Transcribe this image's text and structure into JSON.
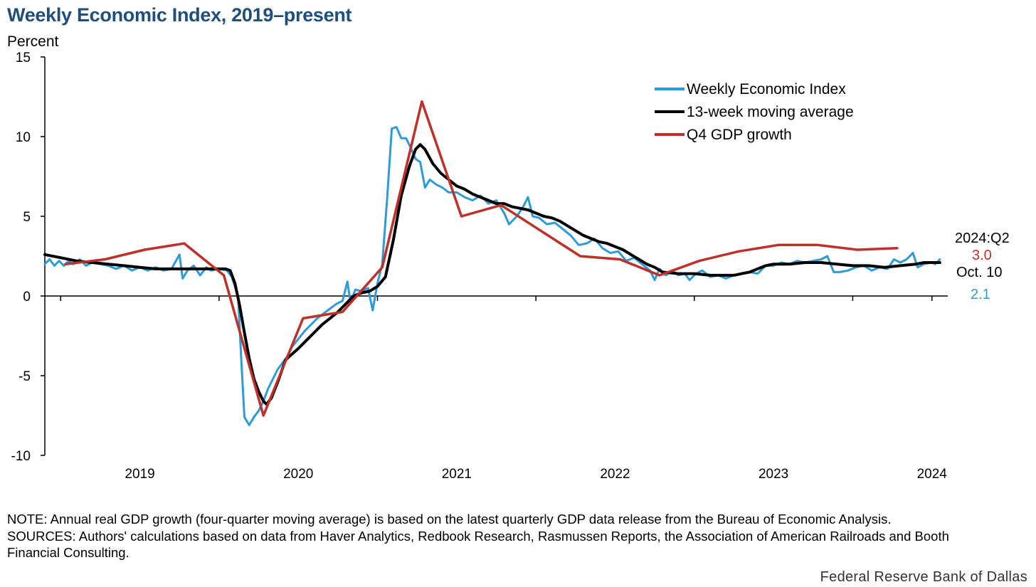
{
  "title": "Weekly Economic Index, 2019–present",
  "y_unit_label": "Percent",
  "notes": {
    "note": "NOTE: Annual real GDP growth (four-quarter moving average) is based on the latest quarterly GDP data release from the Bureau of Economic Analysis.",
    "sources": "SOURCES: Authors' calculations based on data from Haver Analytics, Redbook Research, Rasmussen Reports, the Association of American Railroads and Booth Financial Consulting."
  },
  "brand": "Federal Reserve Bank of Dallas",
  "annotations": {
    "gdp_period": "2024:Q2",
    "gdp_value": "3.0",
    "wei_date": "Oct. 10",
    "wei_value": "2.1"
  },
  "chart_data": {
    "type": "line",
    "title": "Weekly Economic Index, 2019–present",
    "ylabel": "Percent",
    "xlabel": "",
    "xlim": [
      2018.4,
      2024.1
    ],
    "ylim": [
      -10,
      15
    ],
    "y_ticks": [
      15,
      10,
      5,
      0,
      -5,
      -10
    ],
    "x_ticks": [
      2019,
      2020,
      2021,
      2022,
      2023,
      2024
    ],
    "x_tick_labels": [
      "2019",
      "2020",
      "2021",
      "2022",
      "2023",
      "2024"
    ],
    "legend_position": "top-right",
    "colors": {
      "wei": "#2e9bd6",
      "ma": "#000000",
      "gdp": "#c0302b",
      "axis": "#000000"
    },
    "series": [
      {
        "name": "Weekly Economic Index",
        "key": "wei",
        "points": [
          [
            2018.4,
            2.0
          ],
          [
            2018.43,
            2.3
          ],
          [
            2018.46,
            1.9
          ],
          [
            2018.49,
            2.2
          ],
          [
            2018.52,
            1.9
          ],
          [
            2018.55,
            2.2
          ],
          [
            2018.58,
            2.0
          ],
          [
            2018.62,
            2.3
          ],
          [
            2018.66,
            1.9
          ],
          [
            2018.7,
            2.1
          ],
          [
            2018.75,
            2.0
          ],
          [
            2018.8,
            1.9
          ],
          [
            2018.85,
            1.7
          ],
          [
            2018.9,
            1.9
          ],
          [
            2018.95,
            1.6
          ],
          [
            2019.0,
            1.8
          ],
          [
            2019.05,
            1.6
          ],
          [
            2019.1,
            1.8
          ],
          [
            2019.15,
            1.6
          ],
          [
            2019.2,
            1.7
          ],
          [
            2019.25,
            2.6
          ],
          [
            2019.27,
            1.1
          ],
          [
            2019.3,
            1.6
          ],
          [
            2019.34,
            1.9
          ],
          [
            2019.38,
            1.3
          ],
          [
            2019.42,
            1.8
          ],
          [
            2019.45,
            1.6
          ],
          [
            2019.5,
            1.7
          ],
          [
            2019.55,
            1.6
          ],
          [
            2019.58,
            1.2
          ],
          [
            2019.62,
            0.0
          ],
          [
            2019.64,
            -4.0
          ],
          [
            2019.66,
            -7.6
          ],
          [
            2019.69,
            -8.1
          ],
          [
            2019.72,
            -7.6
          ],
          [
            2019.75,
            -7.2
          ],
          [
            2019.78,
            -6.6
          ],
          [
            2019.81,
            -5.8
          ],
          [
            2019.84,
            -5.2
          ],
          [
            2019.87,
            -4.6
          ],
          [
            2019.9,
            -4.2
          ],
          [
            2019.93,
            -3.8
          ],
          [
            2019.96,
            -3.2
          ],
          [
            2020.0,
            -2.7
          ],
          [
            2020.04,
            -2.2
          ],
          [
            2020.08,
            -1.8
          ],
          [
            2020.12,
            -1.4
          ],
          [
            2020.16,
            -1.1
          ],
          [
            2020.2,
            -0.8
          ],
          [
            2020.24,
            -0.5
          ],
          [
            2020.28,
            -0.3
          ],
          [
            2020.31,
            0.9
          ],
          [
            2020.33,
            -0.4
          ],
          [
            2020.36,
            0.4
          ],
          [
            2020.4,
            0.3
          ],
          [
            2020.44,
            0.5
          ],
          [
            2020.47,
            -0.9
          ],
          [
            2020.5,
            0.8
          ],
          [
            2020.53,
            2.0
          ],
          [
            2020.56,
            6.0
          ],
          [
            2020.59,
            10.5
          ],
          [
            2020.62,
            10.6
          ],
          [
            2020.65,
            9.9
          ],
          [
            2020.68,
            9.9
          ],
          [
            2020.71,
            9.3
          ],
          [
            2020.74,
            8.6
          ],
          [
            2020.77,
            8.4
          ],
          [
            2020.8,
            6.8
          ],
          [
            2020.83,
            7.3
          ],
          [
            2020.87,
            7.0
          ],
          [
            2020.91,
            6.8
          ],
          [
            2020.95,
            6.5
          ],
          [
            2021.0,
            6.5
          ],
          [
            2021.05,
            6.2
          ],
          [
            2021.1,
            6.0
          ],
          [
            2021.15,
            6.3
          ],
          [
            2021.2,
            5.8
          ],
          [
            2021.25,
            6.0
          ],
          [
            2021.3,
            5.2
          ],
          [
            2021.33,
            4.5
          ],
          [
            2021.38,
            5.0
          ],
          [
            2021.42,
            5.6
          ],
          [
            2021.45,
            6.2
          ],
          [
            2021.48,
            5.0
          ],
          [
            2021.52,
            4.9
          ],
          [
            2021.57,
            4.5
          ],
          [
            2021.62,
            4.6
          ],
          [
            2021.67,
            4.2
          ],
          [
            2021.72,
            3.8
          ],
          [
            2021.77,
            3.2
          ],
          [
            2021.82,
            3.3
          ],
          [
            2021.87,
            3.6
          ],
          [
            2021.92,
            3.0
          ],
          [
            2021.97,
            2.7
          ],
          [
            2022.02,
            2.8
          ],
          [
            2022.07,
            2.2
          ],
          [
            2022.12,
            2.4
          ],
          [
            2022.17,
            2.0
          ],
          [
            2022.22,
            1.6
          ],
          [
            2022.25,
            1.0
          ],
          [
            2022.28,
            1.7
          ],
          [
            2022.32,
            1.3
          ],
          [
            2022.36,
            1.6
          ],
          [
            2022.4,
            1.3
          ],
          [
            2022.44,
            1.4
          ],
          [
            2022.47,
            1.0
          ],
          [
            2022.51,
            1.4
          ],
          [
            2022.55,
            1.6
          ],
          [
            2022.6,
            1.2
          ],
          [
            2022.65,
            1.3
          ],
          [
            2022.7,
            1.1
          ],
          [
            2022.75,
            1.3
          ],
          [
            2022.8,
            1.4
          ],
          [
            2022.85,
            1.5
          ],
          [
            2022.9,
            1.4
          ],
          [
            2022.95,
            1.9
          ],
          [
            2023.0,
            1.9
          ],
          [
            2023.05,
            2.1
          ],
          [
            2023.1,
            2.0
          ],
          [
            2023.15,
            2.2
          ],
          [
            2023.2,
            2.1
          ],
          [
            2023.25,
            2.2
          ],
          [
            2023.3,
            2.3
          ],
          [
            2023.34,
            2.5
          ],
          [
            2023.38,
            1.5
          ],
          [
            2023.42,
            1.5
          ],
          [
            2023.47,
            1.6
          ],
          [
            2023.52,
            1.8
          ],
          [
            2023.57,
            1.9
          ],
          [
            2023.62,
            1.6
          ],
          [
            2023.67,
            1.8
          ],
          [
            2023.72,
            1.7
          ],
          [
            2023.76,
            2.3
          ],
          [
            2023.8,
            2.1
          ],
          [
            2023.84,
            2.3
          ],
          [
            2023.88,
            2.7
          ],
          [
            2023.91,
            1.8
          ],
          [
            2023.95,
            2.0
          ],
          [
            2024.0,
            2.1
          ],
          [
            2024.02,
            2.0
          ],
          [
            2024.05,
            2.3
          ]
        ]
      },
      {
        "name": "13-week moving average",
        "key": "ma",
        "points": [
          [
            2018.4,
            2.6
          ],
          [
            2018.5,
            2.4
          ],
          [
            2018.6,
            2.2
          ],
          [
            2018.7,
            2.1
          ],
          [
            2018.8,
            2.0
          ],
          [
            2018.9,
            1.9
          ],
          [
            2019.0,
            1.8
          ],
          [
            2019.1,
            1.7
          ],
          [
            2019.2,
            1.7
          ],
          [
            2019.3,
            1.7
          ],
          [
            2019.4,
            1.7
          ],
          [
            2019.5,
            1.7
          ],
          [
            2019.54,
            1.7
          ],
          [
            2019.57,
            1.6
          ],
          [
            2019.6,
            0.8
          ],
          [
            2019.63,
            -0.6
          ],
          [
            2019.66,
            -2.3
          ],
          [
            2019.69,
            -3.9
          ],
          [
            2019.72,
            -5.2
          ],
          [
            2019.75,
            -6.0
          ],
          [
            2019.78,
            -6.6
          ],
          [
            2019.8,
            -6.8
          ],
          [
            2019.83,
            -6.4
          ],
          [
            2019.87,
            -5.4
          ],
          [
            2019.92,
            -4.0
          ],
          [
            2020.0,
            -3.3
          ],
          [
            2020.05,
            -2.8
          ],
          [
            2020.1,
            -2.3
          ],
          [
            2020.15,
            -1.8
          ],
          [
            2020.2,
            -1.4
          ],
          [
            2020.25,
            -1.0
          ],
          [
            2020.3,
            -0.5
          ],
          [
            2020.35,
            0.0
          ],
          [
            2020.4,
            0.2
          ],
          [
            2020.45,
            0.3
          ],
          [
            2020.5,
            0.6
          ],
          [
            2020.55,
            1.2
          ],
          [
            2020.6,
            3.5
          ],
          [
            2020.65,
            6.3
          ],
          [
            2020.7,
            8.1
          ],
          [
            2020.74,
            9.2
          ],
          [
            2020.77,
            9.5
          ],
          [
            2020.8,
            9.2
          ],
          [
            2020.85,
            8.3
          ],
          [
            2020.9,
            7.7
          ],
          [
            2020.95,
            7.3
          ],
          [
            2021.0,
            6.9
          ],
          [
            2021.05,
            6.7
          ],
          [
            2021.1,
            6.4
          ],
          [
            2021.15,
            6.2
          ],
          [
            2021.2,
            6.0
          ],
          [
            2021.25,
            5.8
          ],
          [
            2021.3,
            5.8
          ],
          [
            2021.35,
            5.6
          ],
          [
            2021.4,
            5.5
          ],
          [
            2021.45,
            5.4
          ],
          [
            2021.5,
            5.2
          ],
          [
            2021.55,
            5.0
          ],
          [
            2021.6,
            4.9
          ],
          [
            2021.65,
            4.7
          ],
          [
            2021.7,
            4.4
          ],
          [
            2021.75,
            4.1
          ],
          [
            2021.8,
            3.8
          ],
          [
            2021.85,
            3.6
          ],
          [
            2021.9,
            3.4
          ],
          [
            2021.95,
            3.3
          ],
          [
            2022.0,
            3.1
          ],
          [
            2022.05,
            2.9
          ],
          [
            2022.1,
            2.6
          ],
          [
            2022.15,
            2.3
          ],
          [
            2022.2,
            2.0
          ],
          [
            2022.25,
            1.8
          ],
          [
            2022.3,
            1.5
          ],
          [
            2022.4,
            1.4
          ],
          [
            2022.5,
            1.4
          ],
          [
            2022.6,
            1.3
          ],
          [
            2022.7,
            1.3
          ],
          [
            2022.75,
            1.3
          ],
          [
            2022.8,
            1.4
          ],
          [
            2022.85,
            1.5
          ],
          [
            2022.9,
            1.7
          ],
          [
            2022.95,
            1.9
          ],
          [
            2023.0,
            2.0
          ],
          [
            2023.1,
            2.0
          ],
          [
            2023.2,
            2.1
          ],
          [
            2023.3,
            2.1
          ],
          [
            2023.4,
            2.0
          ],
          [
            2023.5,
            1.9
          ],
          [
            2023.6,
            1.9
          ],
          [
            2023.7,
            1.8
          ],
          [
            2023.8,
            1.9
          ],
          [
            2023.9,
            2.0
          ],
          [
            2023.95,
            2.1
          ],
          [
            2024.0,
            2.1
          ],
          [
            2024.05,
            2.1
          ]
        ]
      },
      {
        "name": "Q4 GDP growth",
        "key": "gdp",
        "points": [
          [
            2018.53,
            2.0
          ],
          [
            2018.78,
            2.3
          ],
          [
            2019.03,
            2.9
          ],
          [
            2019.28,
            3.3
          ],
          [
            2019.53,
            1.3
          ],
          [
            2019.78,
            -7.5
          ],
          [
            2020.03,
            -1.4
          ],
          [
            2020.28,
            -1.0
          ],
          [
            2020.53,
            1.8
          ],
          [
            2020.78,
            12.2
          ],
          [
            2021.03,
            5.0
          ],
          [
            2021.28,
            5.7
          ],
          [
            2021.53,
            4.1
          ],
          [
            2021.78,
            2.5
          ],
          [
            2022.03,
            2.3
          ],
          [
            2022.28,
            1.3
          ],
          [
            2022.53,
            2.2
          ],
          [
            2022.78,
            2.8
          ],
          [
            2023.03,
            3.2
          ],
          [
            2023.28,
            3.2
          ],
          [
            2023.53,
            2.9
          ],
          [
            2023.78,
            3.0
          ]
        ]
      }
    ]
  }
}
